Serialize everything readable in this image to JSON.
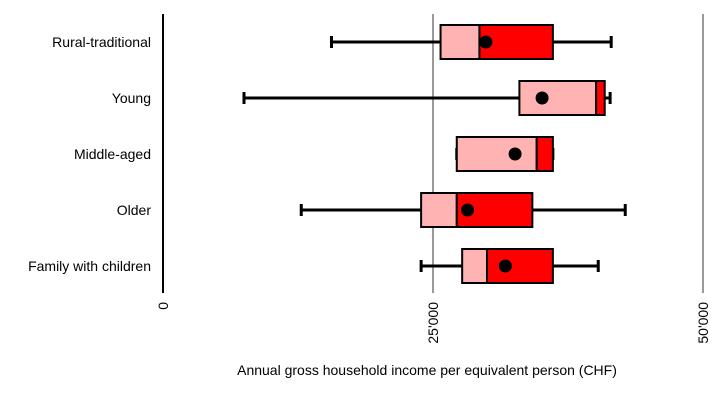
{
  "chart_data": {
    "type": "boxplot",
    "orientation": "horizontal",
    "xlabel": "Annual gross household income per equivalent person (CHF)",
    "xlim": [
      0,
      50000
    ],
    "xticks": [
      {
        "value": 0,
        "label": "0"
      },
      {
        "value": 25000,
        "label": "25'000"
      },
      {
        "value": 50000,
        "label": "50'000"
      }
    ],
    "vertical_reference_lines": [
      25000,
      50000
    ],
    "colors": {
      "lower_box": "#ffb3b3",
      "upper_box": "#ff0000",
      "whisker": "#000000",
      "mean_marker": "#000000",
      "reference_line": "#999999"
    },
    "categories": [
      {
        "label": "Rural-traditional",
        "whisker_low": 15600,
        "q1": 25700,
        "median": 29300,
        "q3": 36100,
        "whisker_high": 41500,
        "mean": 29900
      },
      {
        "label": "Young",
        "whisker_low": 7500,
        "q1": 33000,
        "median": 40100,
        "q3": 40900,
        "whisker_high": 41400,
        "mean": 35100
      },
      {
        "label": "Middle-aged",
        "whisker_low": 27200,
        "q1": 27200,
        "median": 34600,
        "q3": 36100,
        "whisker_high": 36100,
        "mean": 32600
      },
      {
        "label": "Older",
        "whisker_low": 12800,
        "q1": 23900,
        "median": 27200,
        "q3": 34200,
        "whisker_high": 42800,
        "mean": 28200
      },
      {
        "label": "Family with children",
        "whisker_low": 23900,
        "q1": 27700,
        "median": 30000,
        "q3": 36100,
        "whisker_high": 40300,
        "mean": 31700
      }
    ]
  }
}
